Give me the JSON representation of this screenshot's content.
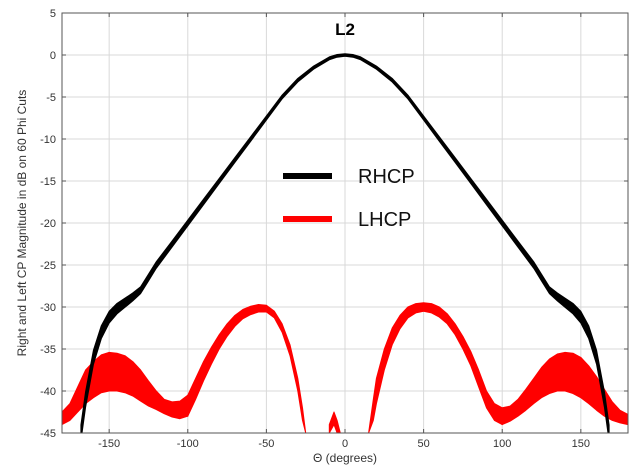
{
  "chart_data": {
    "type": "line",
    "title": "",
    "annotation": "L2",
    "xlabel": "Θ (degrees)",
    "ylabel": "Right and Left CP Magnitude in dB on 60 Phi Cuts",
    "xlim": [
      -180,
      180
    ],
    "ylim": [
      -45,
      5
    ],
    "xticks": [
      -150,
      -100,
      -50,
      0,
      50,
      100,
      150
    ],
    "yticks": [
      5,
      0,
      -5,
      -10,
      -15,
      -20,
      -25,
      -30,
      -35,
      -40,
      -45
    ],
    "grid": true,
    "legend": "center",
    "series": [
      {
        "name": "RHCP",
        "color": "#000000",
        "band_width_db": 0.8,
        "x": [
          -168,
          -165,
          -160,
          -155,
          -150,
          -145,
          -140,
          -135,
          -130,
          -125,
          -120,
          -110,
          -100,
          -90,
          -80,
          -70,
          -60,
          -50,
          -40,
          -30,
          -20,
          -10,
          -5,
          0,
          5,
          10,
          20,
          30,
          40,
          50,
          60,
          70,
          80,
          90,
          100,
          110,
          120,
          125,
          130,
          135,
          140,
          145,
          150,
          155,
          160,
          165,
          168
        ],
        "y": [
          -45,
          -41,
          -36,
          -33,
          -31.2,
          -30.2,
          -29.5,
          -28.8,
          -28,
          -26.5,
          -25,
          -22.5,
          -20,
          -17.5,
          -15,
          -12.5,
          -10,
          -7.5,
          -5,
          -3,
          -1.5,
          -0.4,
          -0.1,
          0,
          -0.1,
          -0.4,
          -1.5,
          -3,
          -5,
          -7.5,
          -10,
          -12.5,
          -15,
          -17.5,
          -20,
          -22.5,
          -25,
          -26.5,
          -28,
          -28.8,
          -29.5,
          -30.2,
          -31.2,
          -33,
          -36,
          -41,
          -45
        ]
      },
      {
        "name": "LHCP",
        "color": "#ff0000",
        "segments": [
          {
            "x": [
              -180,
              -175,
              -170,
              -165,
              -160,
              -155,
              -150,
              -145,
              -140,
              -135,
              -130,
              -125,
              -120,
              -115,
              -110,
              -105,
              -100
            ],
            "y_upper": [
              -42.5,
              -41.5,
              -39.5,
              -37.5,
              -36.5,
              -35.7,
              -35.4,
              -35.5,
              -35.8,
              -36.5,
              -37.5,
              -38.8,
              -40,
              -41,
              -41.3,
              -41.2,
              -40.5
            ],
            "y_lower": [
              -44,
              -43.5,
              -42.5,
              -41.5,
              -40.8,
              -40.2,
              -40,
              -40,
              -40.2,
              -40.6,
              -41.2,
              -41.8,
              -42.2,
              -42.7,
              -43.1,
              -43.3,
              -43
            ]
          },
          {
            "x": [
              -100,
              -95,
              -90,
              -85,
              -80,
              -75,
              -70,
              -65,
              -60,
              -55,
              -50,
              -45,
              -40,
              -35,
              -30,
              -27,
              -25
            ],
            "y_upper": [
              -40.5,
              -38.5,
              -36.5,
              -34.8,
              -33.3,
              -32,
              -31,
              -30.3,
              -29.9,
              -29.7,
              -29.8,
              -30.5,
              -32,
              -34.5,
              -38.5,
              -42,
              -45
            ],
            "y_lower": [
              -43,
              -41,
              -38.8,
              -36.8,
              -35,
              -33.5,
              -32.3,
              -31.4,
              -30.9,
              -30.6,
              -30.6,
              -31.3,
              -33,
              -35.8,
              -40,
              -43.5,
              -45
            ]
          },
          {
            "x": [
              -10,
              -7,
              -5,
              -3
            ],
            "y_upper": [
              -44,
              -42.5,
              -43.5,
              -45
            ],
            "y_lower": [
              -45,
              -44,
              -45,
              -45
            ]
          },
          {
            "x": [
              15,
              18,
              20,
              25,
              30,
              35,
              40,
              45,
              50,
              55,
              60,
              65,
              70,
              75,
              80,
              85,
              90,
              95,
              100
            ],
            "y_upper": [
              -45,
              -41,
              -38.5,
              -35,
              -32.5,
              -31,
              -30,
              -29.6,
              -29.5,
              -29.6,
              -30,
              -30.8,
              -32,
              -33.5,
              -35.3,
              -37.5,
              -40,
              -41.5,
              -42
            ],
            "y_lower": [
              -45,
              -43.5,
              -41.5,
              -37.5,
              -34.5,
              -32.6,
              -31.3,
              -30.7,
              -30.5,
              -30.7,
              -31.2,
              -32,
              -33.3,
              -35,
              -37,
              -39.5,
              -42,
              -43.5,
              -44
            ]
          },
          {
            "x": [
              100,
              105,
              110,
              115,
              120,
              125,
              130,
              135,
              140,
              145,
              150,
              155,
              160,
              165,
              170,
              175,
              180
            ],
            "y_upper": [
              -42,
              -41.8,
              -41,
              -39.8,
              -38.5,
              -37.2,
              -36.2,
              -35.6,
              -35.4,
              -35.5,
              -36,
              -37,
              -38.3,
              -39.8,
              -41.3,
              -42.3,
              -42.8
            ],
            "y_lower": [
              -44,
              -43.6,
              -43,
              -42.3,
              -41.5,
              -40.8,
              -40.3,
              -40,
              -40,
              -40.3,
              -40.8,
              -41.5,
              -42.3,
              -43,
              -43.5,
              -43.8,
              -44
            ]
          }
        ]
      }
    ]
  }
}
